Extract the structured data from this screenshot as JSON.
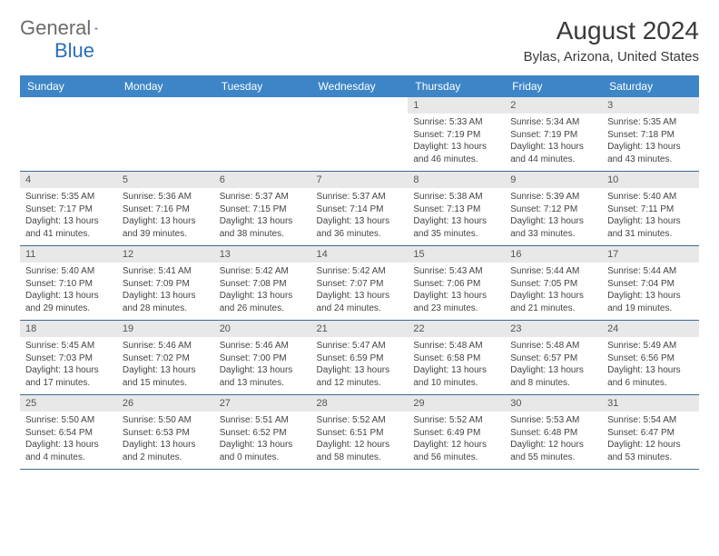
{
  "logo": {
    "word1": "General",
    "word2": "Blue"
  },
  "title": "August 2024",
  "location": "Bylas, Arizona, United States",
  "colors": {
    "header_bg": "#3d85c6",
    "header_text": "#ffffff",
    "daynum_bg": "#e8e8e8",
    "row_divider": "#3d6a9a",
    "logo_gray": "#6b6b6b",
    "logo_blue": "#2a6ebb"
  },
  "typography": {
    "title_fontsize": 28,
    "location_fontsize": 15,
    "weekday_fontsize": 12,
    "daynum_fontsize": 11,
    "body_fontsize": 10
  },
  "weekdays": [
    "Sunday",
    "Monday",
    "Tuesday",
    "Wednesday",
    "Thursday",
    "Friday",
    "Saturday"
  ],
  "weeks": [
    [
      {
        "blank": true
      },
      {
        "blank": true
      },
      {
        "blank": true
      },
      {
        "blank": true
      },
      {
        "day": "1",
        "sunrise": "Sunrise: 5:33 AM",
        "sunset": "Sunset: 7:19 PM",
        "daylight": "Daylight: 13 hours and 46 minutes."
      },
      {
        "day": "2",
        "sunrise": "Sunrise: 5:34 AM",
        "sunset": "Sunset: 7:19 PM",
        "daylight": "Daylight: 13 hours and 44 minutes."
      },
      {
        "day": "3",
        "sunrise": "Sunrise: 5:35 AM",
        "sunset": "Sunset: 7:18 PM",
        "daylight": "Daylight: 13 hours and 43 minutes."
      }
    ],
    [
      {
        "day": "4",
        "sunrise": "Sunrise: 5:35 AM",
        "sunset": "Sunset: 7:17 PM",
        "daylight": "Daylight: 13 hours and 41 minutes."
      },
      {
        "day": "5",
        "sunrise": "Sunrise: 5:36 AM",
        "sunset": "Sunset: 7:16 PM",
        "daylight": "Daylight: 13 hours and 39 minutes."
      },
      {
        "day": "6",
        "sunrise": "Sunrise: 5:37 AM",
        "sunset": "Sunset: 7:15 PM",
        "daylight": "Daylight: 13 hours and 38 minutes."
      },
      {
        "day": "7",
        "sunrise": "Sunrise: 5:37 AM",
        "sunset": "Sunset: 7:14 PM",
        "daylight": "Daylight: 13 hours and 36 minutes."
      },
      {
        "day": "8",
        "sunrise": "Sunrise: 5:38 AM",
        "sunset": "Sunset: 7:13 PM",
        "daylight": "Daylight: 13 hours and 35 minutes."
      },
      {
        "day": "9",
        "sunrise": "Sunrise: 5:39 AM",
        "sunset": "Sunset: 7:12 PM",
        "daylight": "Daylight: 13 hours and 33 minutes."
      },
      {
        "day": "10",
        "sunrise": "Sunrise: 5:40 AM",
        "sunset": "Sunset: 7:11 PM",
        "daylight": "Daylight: 13 hours and 31 minutes."
      }
    ],
    [
      {
        "day": "11",
        "sunrise": "Sunrise: 5:40 AM",
        "sunset": "Sunset: 7:10 PM",
        "daylight": "Daylight: 13 hours and 29 minutes."
      },
      {
        "day": "12",
        "sunrise": "Sunrise: 5:41 AM",
        "sunset": "Sunset: 7:09 PM",
        "daylight": "Daylight: 13 hours and 28 minutes."
      },
      {
        "day": "13",
        "sunrise": "Sunrise: 5:42 AM",
        "sunset": "Sunset: 7:08 PM",
        "daylight": "Daylight: 13 hours and 26 minutes."
      },
      {
        "day": "14",
        "sunrise": "Sunrise: 5:42 AM",
        "sunset": "Sunset: 7:07 PM",
        "daylight": "Daylight: 13 hours and 24 minutes."
      },
      {
        "day": "15",
        "sunrise": "Sunrise: 5:43 AM",
        "sunset": "Sunset: 7:06 PM",
        "daylight": "Daylight: 13 hours and 23 minutes."
      },
      {
        "day": "16",
        "sunrise": "Sunrise: 5:44 AM",
        "sunset": "Sunset: 7:05 PM",
        "daylight": "Daylight: 13 hours and 21 minutes."
      },
      {
        "day": "17",
        "sunrise": "Sunrise: 5:44 AM",
        "sunset": "Sunset: 7:04 PM",
        "daylight": "Daylight: 13 hours and 19 minutes."
      }
    ],
    [
      {
        "day": "18",
        "sunrise": "Sunrise: 5:45 AM",
        "sunset": "Sunset: 7:03 PM",
        "daylight": "Daylight: 13 hours and 17 minutes."
      },
      {
        "day": "19",
        "sunrise": "Sunrise: 5:46 AM",
        "sunset": "Sunset: 7:02 PM",
        "daylight": "Daylight: 13 hours and 15 minutes."
      },
      {
        "day": "20",
        "sunrise": "Sunrise: 5:46 AM",
        "sunset": "Sunset: 7:00 PM",
        "daylight": "Daylight: 13 hours and 13 minutes."
      },
      {
        "day": "21",
        "sunrise": "Sunrise: 5:47 AM",
        "sunset": "Sunset: 6:59 PM",
        "daylight": "Daylight: 13 hours and 12 minutes."
      },
      {
        "day": "22",
        "sunrise": "Sunrise: 5:48 AM",
        "sunset": "Sunset: 6:58 PM",
        "daylight": "Daylight: 13 hours and 10 minutes."
      },
      {
        "day": "23",
        "sunrise": "Sunrise: 5:48 AM",
        "sunset": "Sunset: 6:57 PM",
        "daylight": "Daylight: 13 hours and 8 minutes."
      },
      {
        "day": "24",
        "sunrise": "Sunrise: 5:49 AM",
        "sunset": "Sunset: 6:56 PM",
        "daylight": "Daylight: 13 hours and 6 minutes."
      }
    ],
    [
      {
        "day": "25",
        "sunrise": "Sunrise: 5:50 AM",
        "sunset": "Sunset: 6:54 PM",
        "daylight": "Daylight: 13 hours and 4 minutes."
      },
      {
        "day": "26",
        "sunrise": "Sunrise: 5:50 AM",
        "sunset": "Sunset: 6:53 PM",
        "daylight": "Daylight: 13 hours and 2 minutes."
      },
      {
        "day": "27",
        "sunrise": "Sunrise: 5:51 AM",
        "sunset": "Sunset: 6:52 PM",
        "daylight": "Daylight: 13 hours and 0 minutes."
      },
      {
        "day": "28",
        "sunrise": "Sunrise: 5:52 AM",
        "sunset": "Sunset: 6:51 PM",
        "daylight": "Daylight: 12 hours and 58 minutes."
      },
      {
        "day": "29",
        "sunrise": "Sunrise: 5:52 AM",
        "sunset": "Sunset: 6:49 PM",
        "daylight": "Daylight: 12 hours and 56 minutes."
      },
      {
        "day": "30",
        "sunrise": "Sunrise: 5:53 AM",
        "sunset": "Sunset: 6:48 PM",
        "daylight": "Daylight: 12 hours and 55 minutes."
      },
      {
        "day": "31",
        "sunrise": "Sunrise: 5:54 AM",
        "sunset": "Sunset: 6:47 PM",
        "daylight": "Daylight: 12 hours and 53 minutes."
      }
    ]
  ]
}
